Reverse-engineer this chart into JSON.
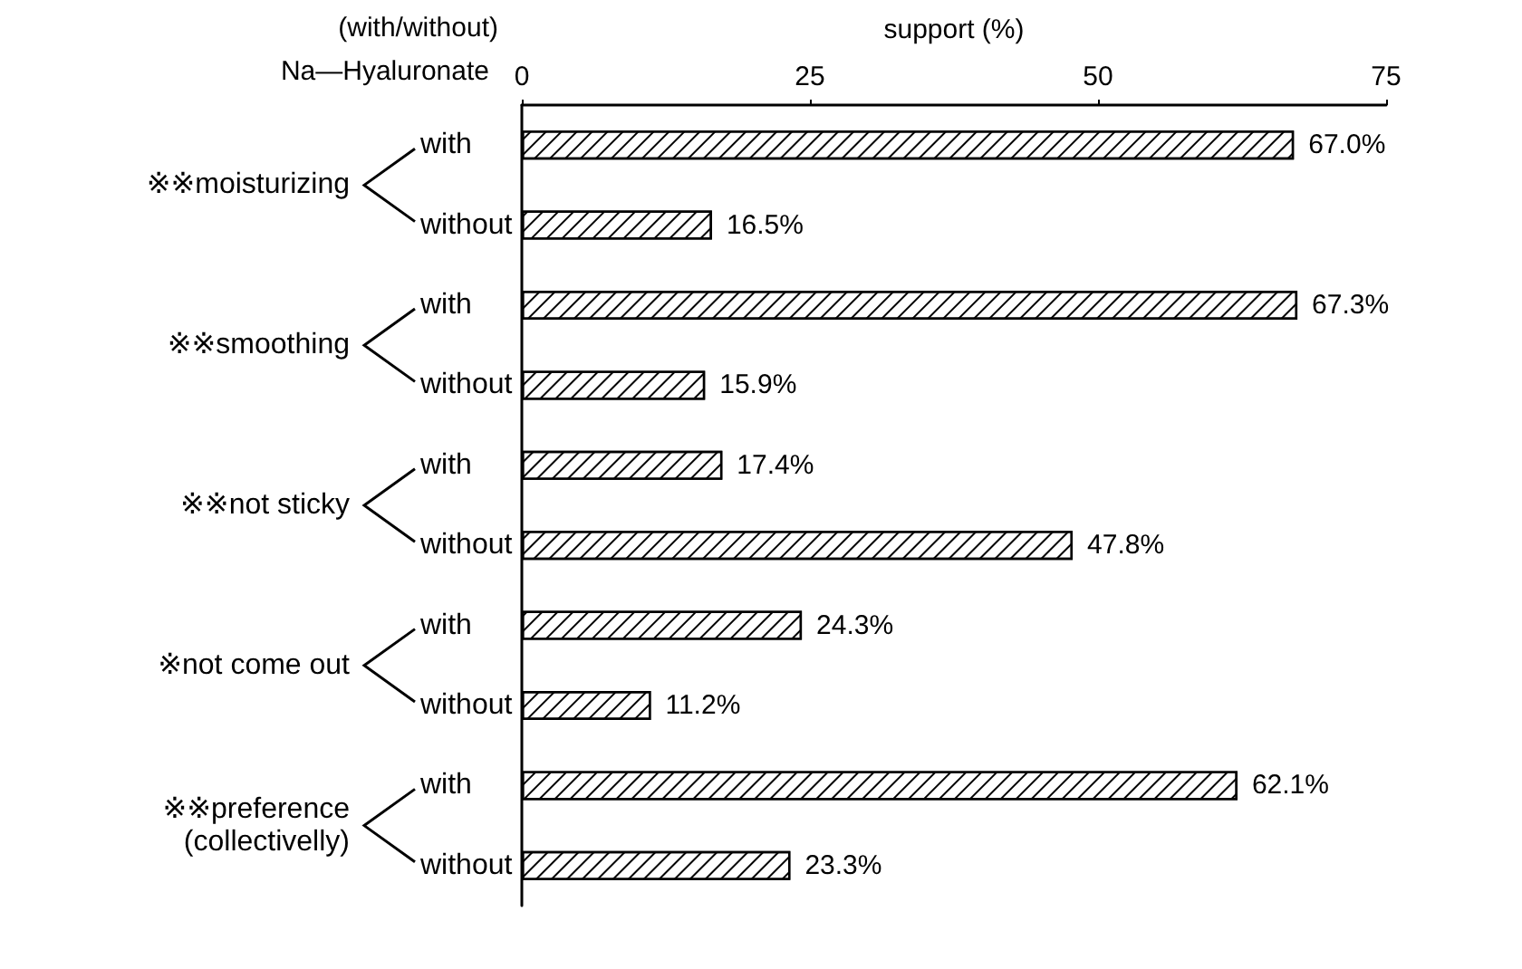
{
  "chart_data": {
    "type": "bar",
    "orientation": "horizontal",
    "xlabel": "support (%)",
    "ylabel": "(with/without)\nNa—Hyaluronate",
    "categories": [
      "with",
      "without",
      "with",
      "without",
      "with",
      "without",
      "with",
      "without",
      "with",
      "without"
    ],
    "values": [
      67.0,
      16.5,
      67.3,
      15.9,
      17.4,
      47.8,
      24.3,
      11.2,
      62.1,
      23.3
    ],
    "value_labels": [
      "67.0%",
      "16.5%",
      "67.3%",
      "15.9%",
      "17.4%",
      "47.8%",
      "24.3%",
      "11.2%",
      "62.1%",
      "23.3%"
    ],
    "color": "#000000",
    "xlim": [
      0,
      75
    ],
    "xticks": [
      0,
      25,
      50,
      75
    ],
    "annotations": [
      "※※moisturizing",
      "※※smoothing",
      "※※not sticky",
      "※not come out",
      "※※preference\n(collectivelly)"
    ]
  }
}
